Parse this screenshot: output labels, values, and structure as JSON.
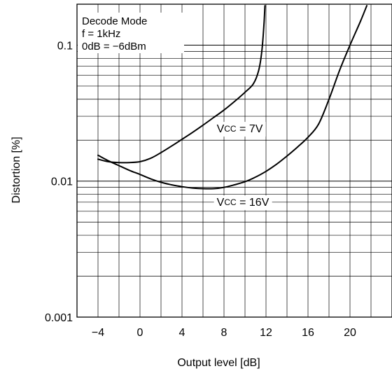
{
  "chart_data": {
    "type": "line",
    "title": "",
    "xlabel": "Output level [dB]",
    "ylabel": "Distortion [%]",
    "xlim": [
      -6,
      24
    ],
    "ylim": [
      0.001,
      0.2
    ],
    "y_scale": "log",
    "grid": true,
    "x_ticks": [
      -4,
      0,
      4,
      8,
      12,
      16,
      20
    ],
    "x_tick_labels": [
      "−4",
      "0",
      "4",
      "8",
      "12",
      "16",
      "20"
    ],
    "y_ticks": [
      0.001,
      0.01,
      0.1
    ],
    "y_tick_labels": [
      "0.001",
      "0.01",
      "0.1"
    ],
    "annotation_lines": [
      "Decode Mode",
      "f = 1kHz",
      "0dB = −6dBm"
    ],
    "series": [
      {
        "label": "VCC = 7V",
        "label_main": "V",
        "label_sub": "CC",
        "label_rest": " = 7V",
        "label_x": 9.5,
        "label_y": 0.024,
        "x": [
          -4,
          -3,
          -2,
          -1,
          0,
          1,
          2,
          3,
          4,
          5,
          6,
          7,
          8,
          9,
          10,
          10.8,
          11.3,
          11.6,
          11.8,
          11.9
        ],
        "y": [
          0.0145,
          0.0139,
          0.0137,
          0.0137,
          0.0139,
          0.0147,
          0.0162,
          0.0181,
          0.0203,
          0.0228,
          0.0258,
          0.0293,
          0.0333,
          0.0385,
          0.045,
          0.052,
          0.065,
          0.09,
          0.14,
          0.195
        ]
      },
      {
        "label": "VCC = 16V",
        "label_main": "V",
        "label_sub": "CC",
        "label_rest": " = 16V",
        "label_x": 9.8,
        "label_y": 0.0069,
        "x": [
          -4,
          -3,
          -2,
          -1,
          0,
          1,
          2,
          3,
          4,
          5,
          6,
          7,
          8,
          9,
          10,
          11,
          12,
          13,
          14,
          15,
          16,
          17,
          18,
          19,
          20,
          21,
          21.6
        ],
        "y": [
          0.0155,
          0.0141,
          0.013,
          0.012,
          0.0112,
          0.0104,
          0.0098,
          0.0094,
          0.0091,
          0.0089,
          0.0088,
          0.0088,
          0.009,
          0.0094,
          0.0099,
          0.0107,
          0.0118,
          0.0133,
          0.0153,
          0.0178,
          0.021,
          0.0262,
          0.04,
          0.065,
          0.1,
          0.15,
          0.195
        ]
      }
    ]
  }
}
